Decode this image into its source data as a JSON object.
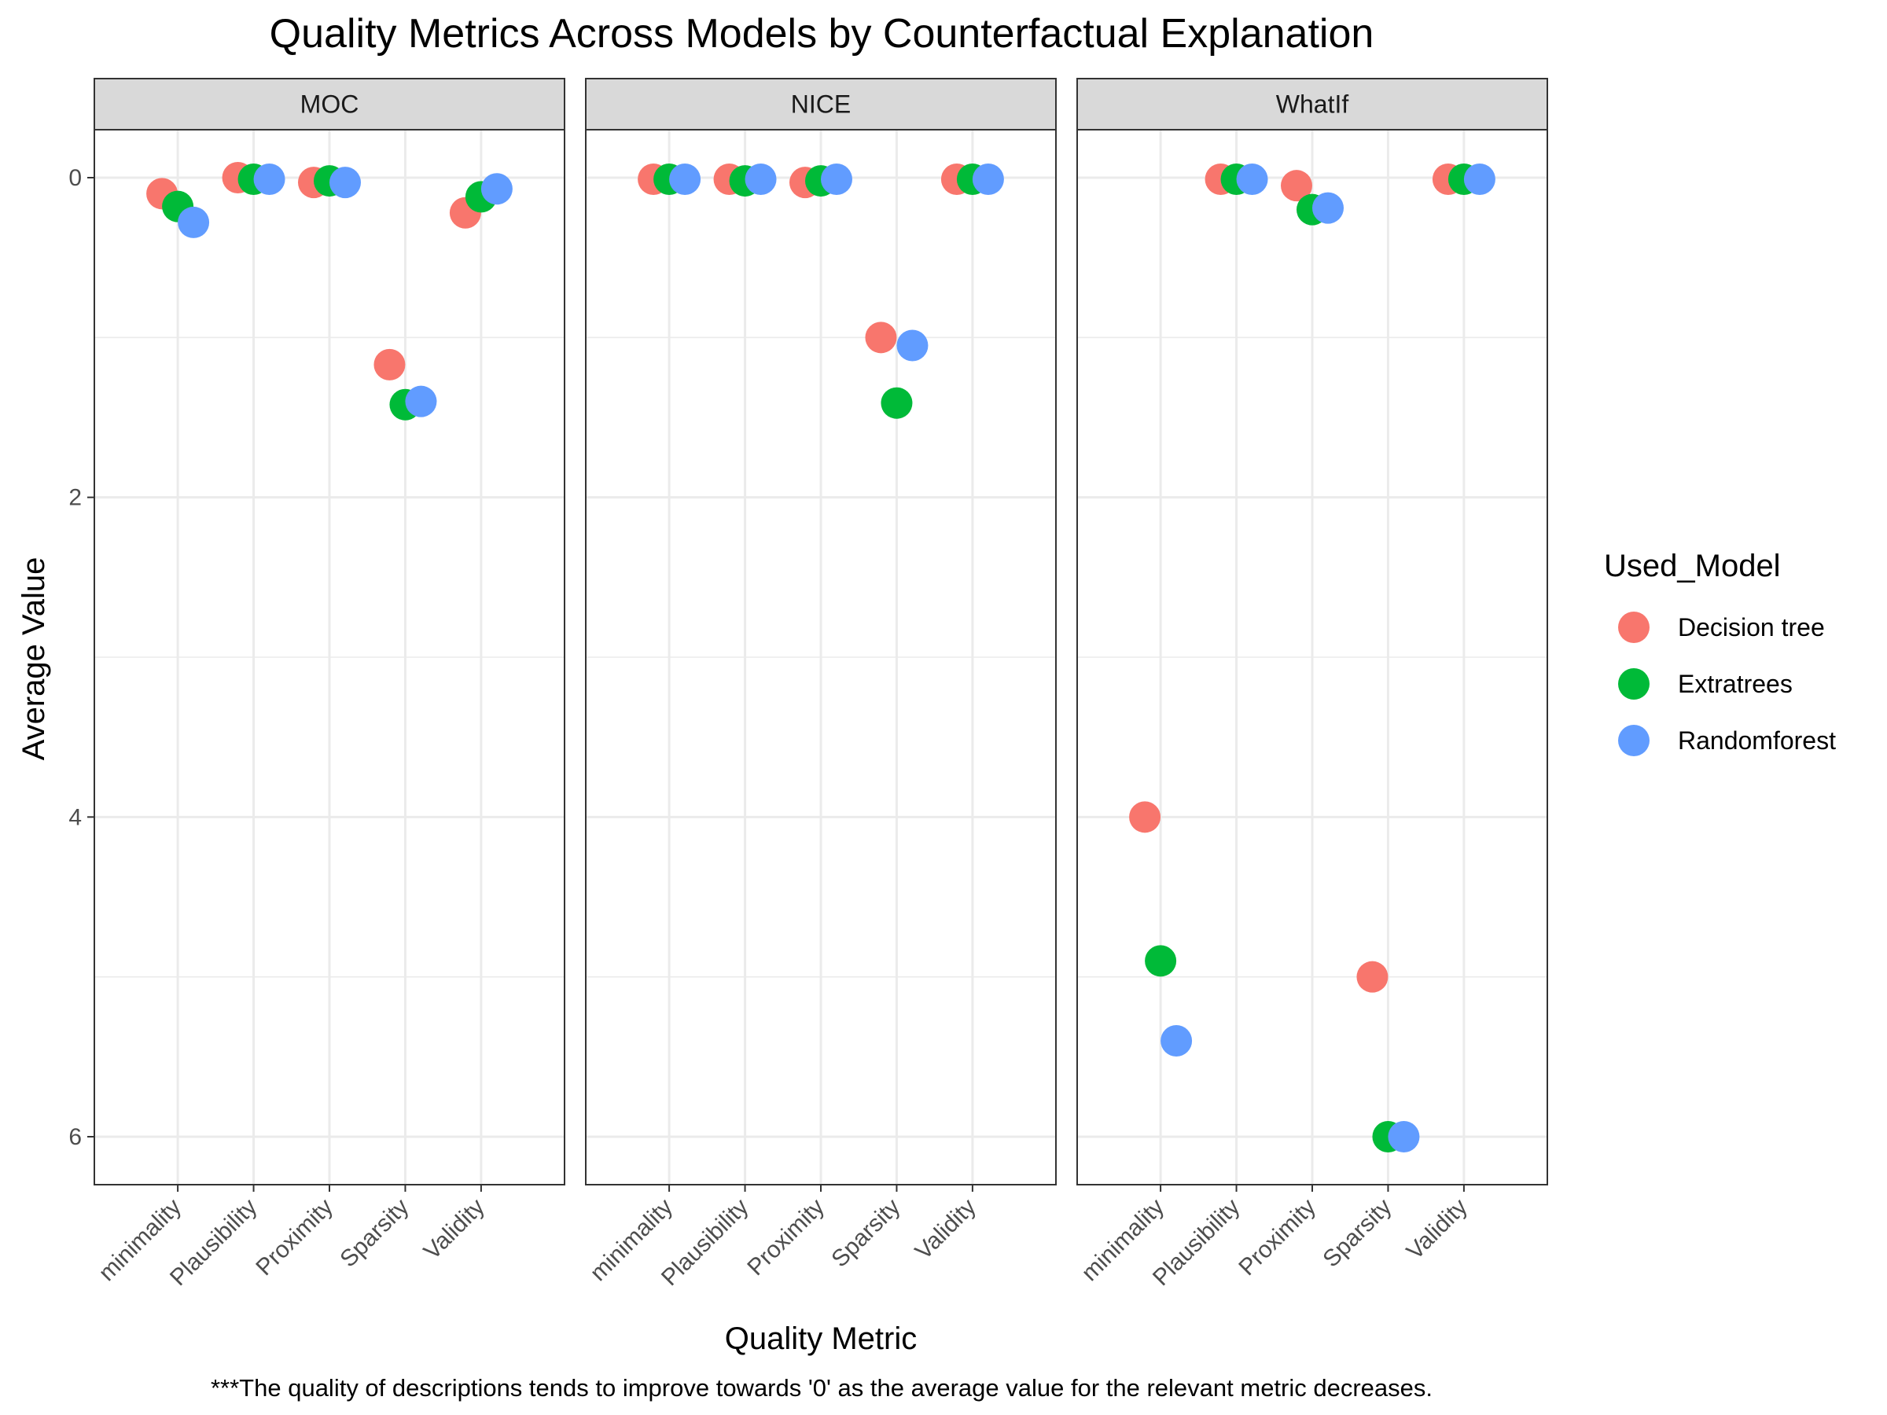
{
  "chart_data": {
    "type": "scatter",
    "title": "Quality Metrics Across Models by Counterfactual Explanation",
    "xlabel": "Quality Metric",
    "ylabel": "Average Value",
    "caption": "***The quality of descriptions tends to improve towards '0' as the average value for the relevant metric decreases.",
    "y_reversed": true,
    "ylim": [
      6.3,
      -0.3
    ],
    "yticks": [
      0,
      2,
      4,
      6
    ],
    "grid": true,
    "legend": {
      "title": "Used_Model",
      "placement": "right"
    },
    "categories": [
      "minimality",
      "Plausibility",
      "Proximity",
      "Sparsity",
      "Validity"
    ],
    "series_colors": {
      "Decision tree": "#F8766D",
      "Extratrees": "#00BA38",
      "Randomforest": "#619CFF"
    },
    "panels": [
      {
        "name": "MOC",
        "series": [
          {
            "name": "Decision tree",
            "values": [
              0.1,
              0.0,
              0.03,
              1.17,
              0.22
            ]
          },
          {
            "name": "Extratrees",
            "values": [
              0.18,
              0.01,
              0.02,
              1.42,
              0.12
            ]
          },
          {
            "name": "Randomforest",
            "values": [
              0.28,
              0.01,
              0.03,
              1.4,
              0.07
            ]
          }
        ]
      },
      {
        "name": "NICE",
        "series": [
          {
            "name": "Decision tree",
            "values": [
              0.01,
              0.01,
              0.03,
              1.0,
              0.01
            ]
          },
          {
            "name": "Extratrees",
            "values": [
              0.01,
              0.02,
              0.02,
              1.41,
              0.01
            ]
          },
          {
            "name": "Randomforest",
            "values": [
              0.01,
              0.01,
              0.01,
              1.05,
              0.01
            ]
          }
        ]
      },
      {
        "name": "WhatIf",
        "series": [
          {
            "name": "Decision tree",
            "values": [
              4.0,
              0.01,
              0.05,
              5.0,
              0.01
            ]
          },
          {
            "name": "Extratrees",
            "values": [
              4.9,
              0.01,
              0.2,
              6.0,
              0.01
            ]
          },
          {
            "name": "Randomforest",
            "values": [
              5.4,
              0.01,
              0.19,
              6.0,
              0.01
            ]
          }
        ]
      }
    ]
  }
}
